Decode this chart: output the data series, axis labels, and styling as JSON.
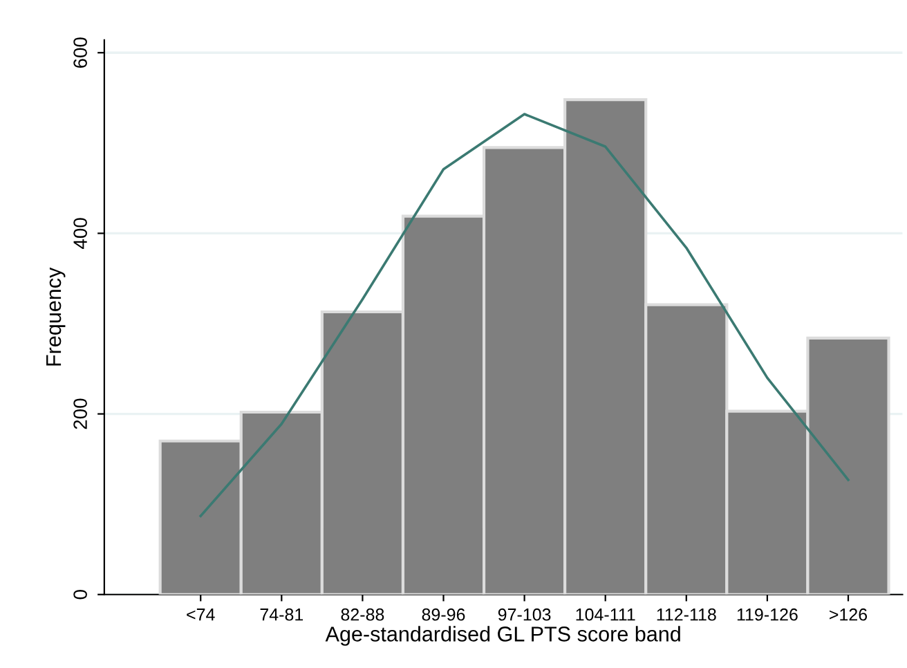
{
  "chart_data": {
    "type": "bar",
    "xlabel": "Age-standardised GL PTS score band",
    "ylabel": "Frequency",
    "categories": [
      "<74",
      "74-81",
      "82-88",
      "89-96",
      "97-103",
      "104-111",
      "112-118",
      "119-126",
      ">126"
    ],
    "series": [
      {
        "color": "#7f7f7f",
        "values": [
          170,
          202,
          313,
          419,
          495,
          548,
          321,
          203,
          284
        ]
      },
      {
        "type": "line",
        "color": "#3b7a72",
        "values": [
          87,
          189,
          327,
          471,
          532,
          496,
          384,
          240,
          127
        ]
      }
    ],
    "ylim": [
      0,
      614
    ],
    "yticks": [
      0,
      200,
      400,
      600
    ],
    "grid": "y",
    "legend": false
  }
}
